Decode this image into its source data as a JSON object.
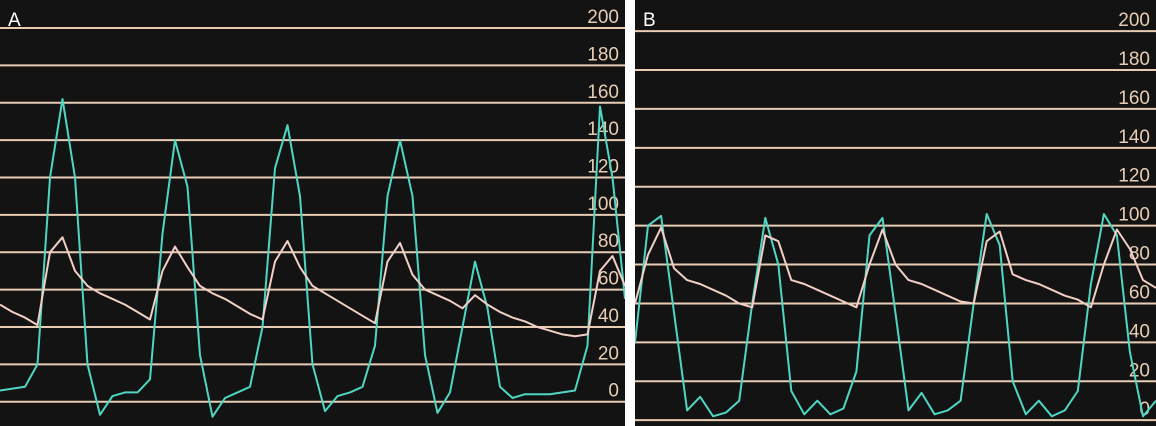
{
  "chart_data": [
    {
      "type": "line",
      "title": "A",
      "grid": true,
      "grid_color": "#e8cdb4",
      "background": "#131313",
      "x": [
        0,
        1,
        2,
        3,
        4,
        5,
        6,
        7,
        8,
        9,
        10,
        11,
        12,
        13,
        14,
        15,
        16,
        17,
        18,
        19,
        20,
        21,
        22,
        23,
        24,
        25,
        26,
        27,
        28,
        29,
        30,
        31,
        32,
        33,
        34,
        35,
        36,
        37,
        38,
        39,
        40,
        41,
        42,
        43,
        44,
        45,
        46,
        47,
        48,
        49,
        50
      ],
      "xlim": [
        0,
        50
      ],
      "ylim": [
        -13,
        215
      ],
      "yticks": [
        0,
        20,
        40,
        60,
        80,
        100,
        120,
        140,
        160,
        180,
        200
      ],
      "series": [
        {
          "color": "#4fd6c2",
          "values": [
            6,
            7,
            8,
            20,
            120,
            162,
            120,
            20,
            -7,
            3,
            5,
            5,
            12,
            90,
            140,
            115,
            25,
            -8,
            2,
            5,
            8,
            40,
            125,
            148,
            110,
            20,
            -5,
            3,
            5,
            8,
            30,
            110,
            140,
            110,
            25,
            -6,
            5,
            40,
            75,
            50,
            8,
            2,
            4,
            4,
            4,
            5,
            6,
            30,
            158,
            120,
            55
          ]
        },
        {
          "color": "#f2cfc6",
          "values": [
            52,
            48,
            45,
            41,
            80,
            88,
            70,
            62,
            58,
            55,
            52,
            48,
            44,
            70,
            83,
            72,
            62,
            58,
            55,
            51,
            47,
            44,
            75,
            86,
            72,
            62,
            58,
            54,
            50,
            46,
            42,
            75,
            85,
            68,
            60,
            57,
            54,
            50,
            57,
            52,
            48,
            45,
            43,
            40,
            38,
            36,
            35,
            36,
            70,
            78,
            62
          ]
        }
      ]
    },
    {
      "type": "line",
      "title": "B",
      "grid": true,
      "grid_color": "#e8cdb4",
      "background": "#131313",
      "x": [
        0,
        1,
        2,
        3,
        4,
        5,
        6,
        7,
        8,
        9,
        10,
        11,
        12,
        13,
        14,
        15,
        16,
        17,
        18,
        19,
        20,
        21,
        22,
        23,
        24,
        25,
        26,
        27,
        28,
        29,
        30,
        31,
        32,
        33,
        34,
        35,
        36,
        37,
        38,
        39,
        40
      ],
      "xlim": [
        0,
        40
      ],
      "ylim": [
        -3,
        216
      ],
      "yticks": [
        0,
        20,
        40,
        60,
        80,
        100,
        120,
        140,
        160,
        180,
        200
      ],
      "series": [
        {
          "color": "#4fd6c2",
          "values": [
            40,
            100,
            105,
            55,
            5,
            12,
            2,
            4,
            10,
            60,
            104,
            80,
            15,
            3,
            10,
            3,
            6,
            25,
            95,
            104,
            55,
            5,
            14,
            3,
            5,
            10,
            60,
            106,
            90,
            20,
            3,
            10,
            2,
            5,
            15,
            70,
            106,
            95,
            35,
            2,
            10
          ]
        },
        {
          "color": "#f2cfc6",
          "values": [
            60,
            85,
            99,
            78,
            72,
            70,
            67,
            64,
            60,
            58,
            95,
            92,
            72,
            70,
            67,
            64,
            61,
            58,
            80,
            98,
            80,
            72,
            70,
            67,
            64,
            61,
            60,
            92,
            97,
            75,
            72,
            70,
            67,
            64,
            62,
            58,
            80,
            98,
            88,
            72,
            68
          ]
        }
      ]
    }
  ]
}
